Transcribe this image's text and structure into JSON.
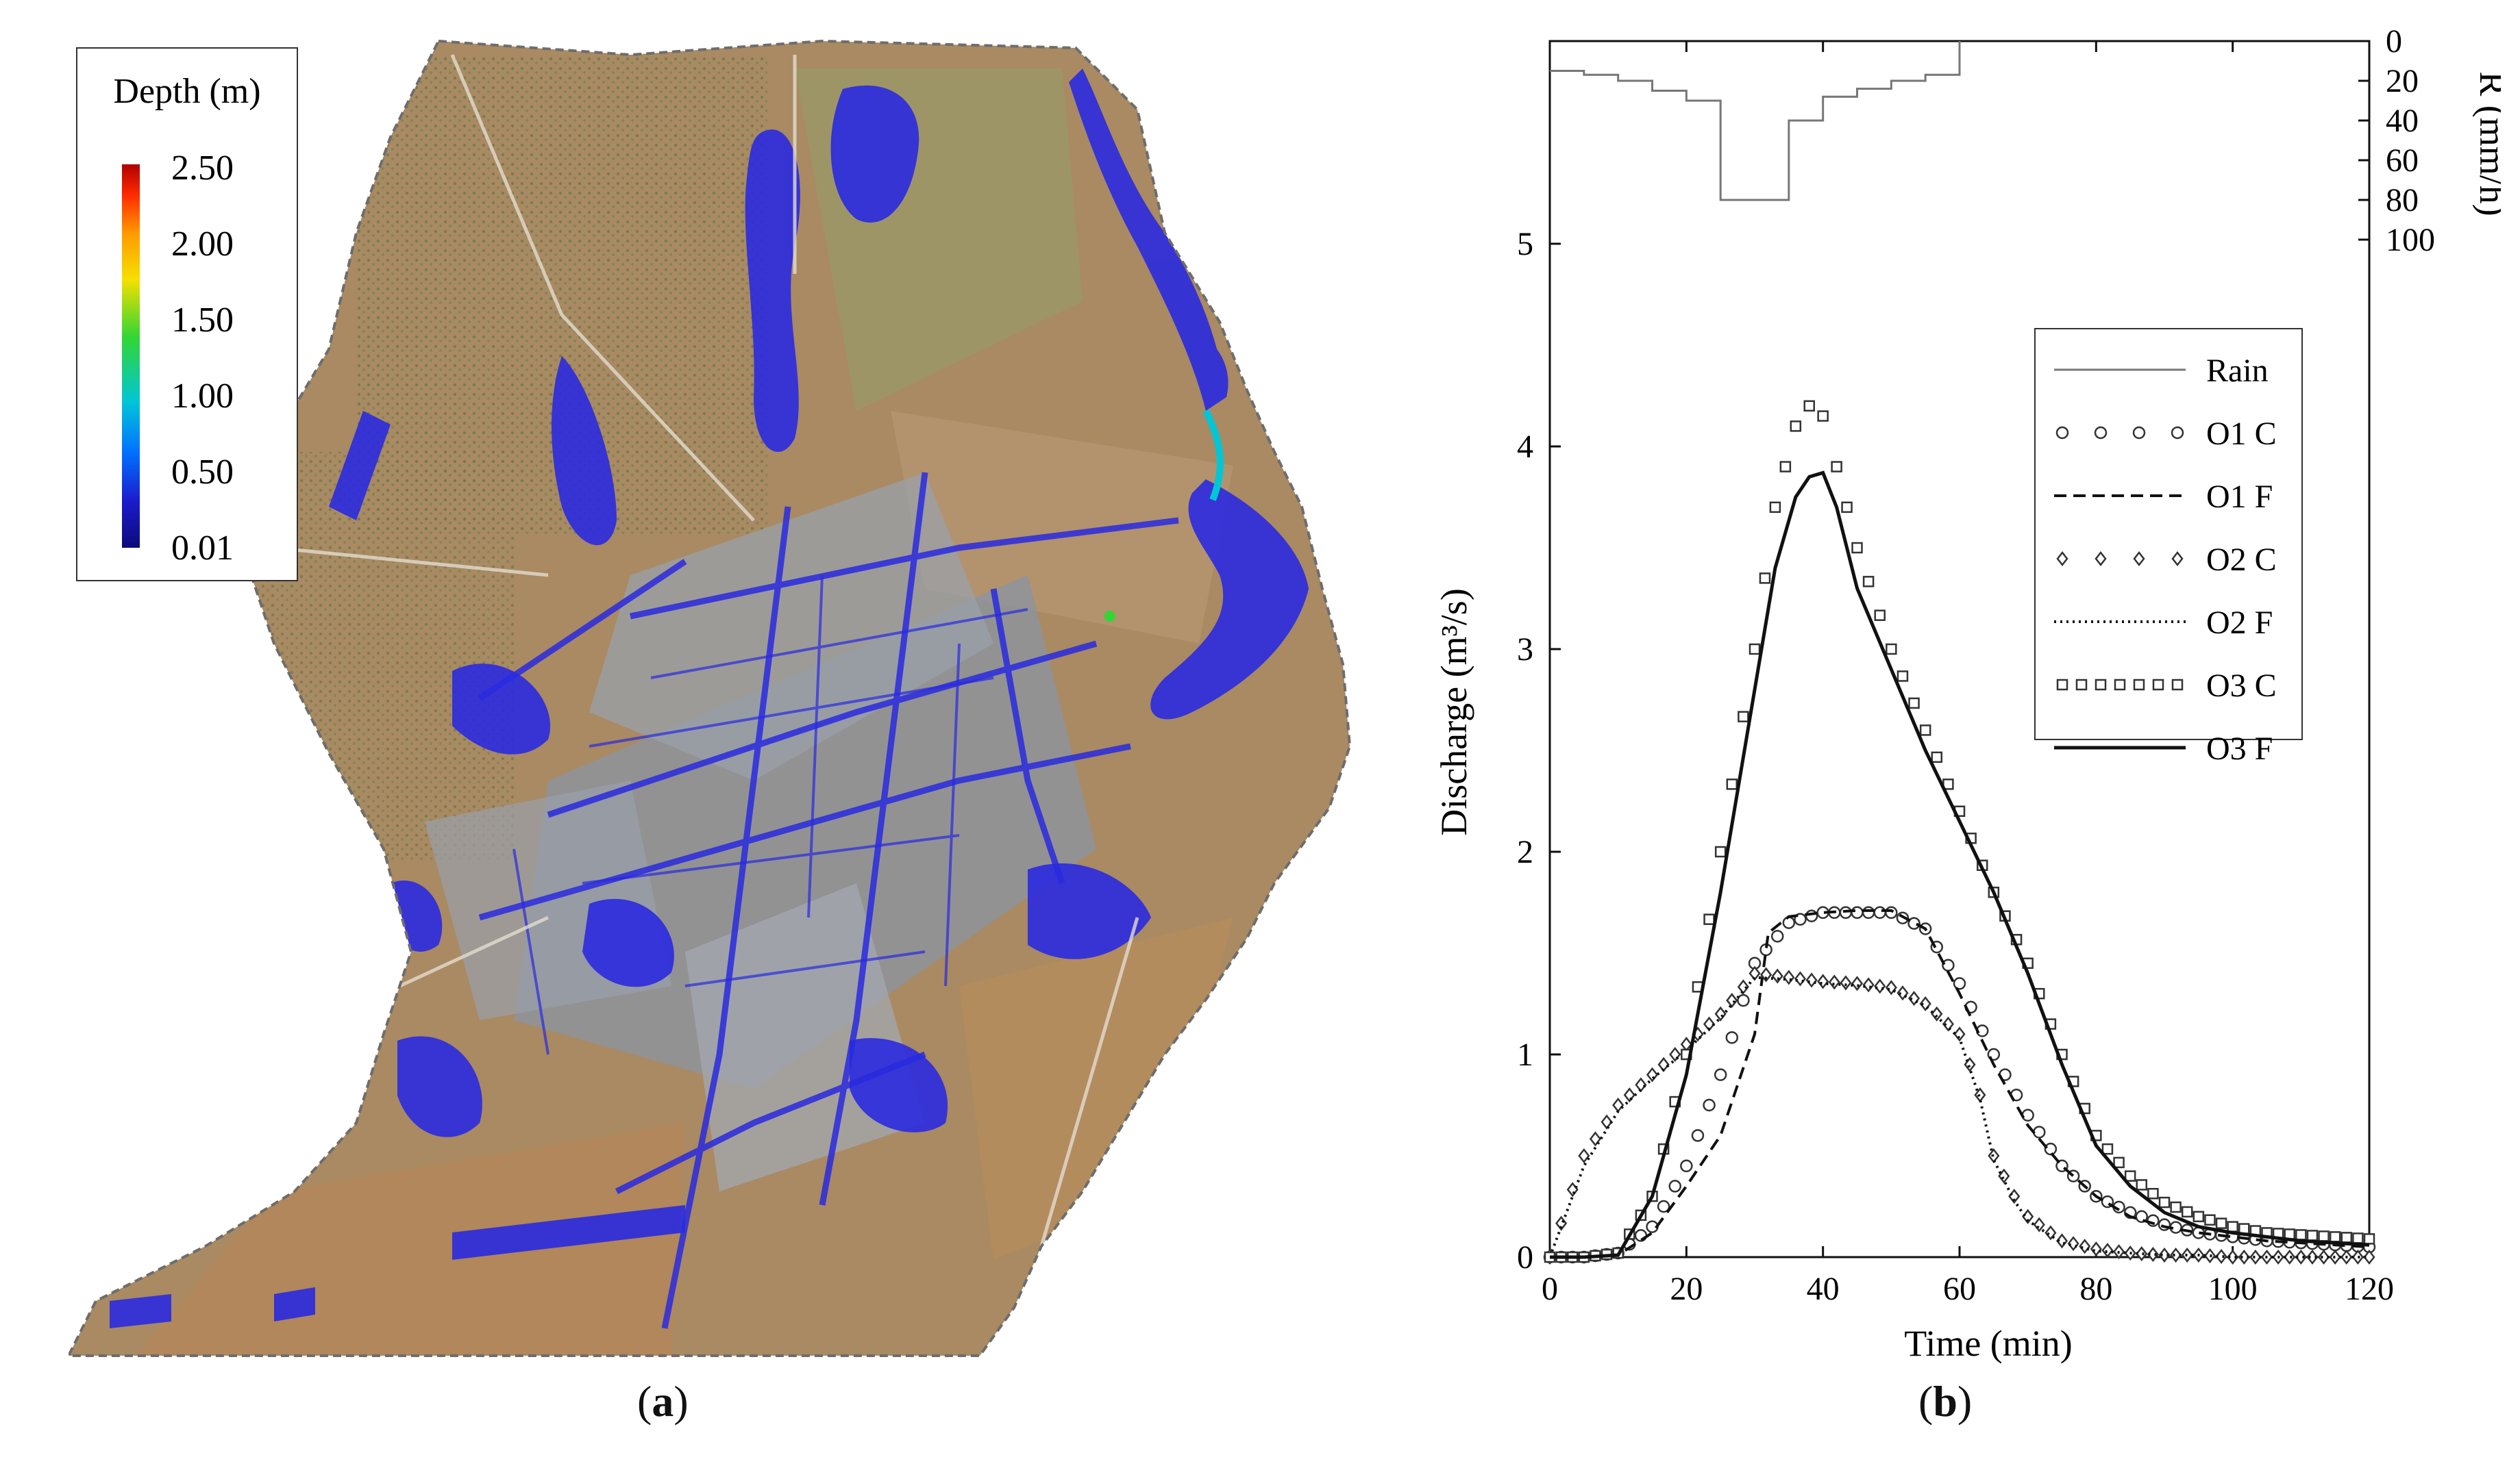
{
  "panel_labels": {
    "a": "a",
    "b": "b"
  },
  "map": {
    "legend": {
      "title": "Depth (m)",
      "ticks": [
        "2.50",
        "2.00",
        "1.50",
        "1.00",
        "0.50",
        "0.01"
      ],
      "colormap": [
        "#b00000",
        "#ff2a00",
        "#ff9a00",
        "#f5e000",
        "#33d633",
        "#00c6d6",
        "#0072ff",
        "#1b1bcc",
        "#0b0b7a"
      ]
    },
    "colors": {
      "terrain": "#a98a62",
      "terrain_dark": "#8a6a45",
      "fields_green": "#8f9a64",
      "water": "#2a2ae0",
      "urban": "#8c93a0"
    }
  },
  "chart_data": [
    {
      "type": "line",
      "role": "discharge",
      "xlabel": "Time (min)",
      "ylabel": "Discharge (m³/s)",
      "xlim": [
        0,
        120
      ],
      "ylim": [
        0,
        6
      ],
      "xticks": [
        0,
        20,
        40,
        60,
        80,
        100,
        120
      ],
      "yticks": [
        0,
        1,
        2,
        3,
        4,
        5
      ],
      "legend_position": "upper-right",
      "series": [
        {
          "name": "O1 C",
          "style": "circles",
          "x": [
            0,
            5,
            10,
            15,
            20,
            25,
            30,
            35,
            40,
            45,
            50,
            55,
            60,
            65,
            70,
            75,
            80,
            85,
            90,
            95,
            100,
            105,
            110,
            115,
            120
          ],
          "y": [
            0,
            0,
            0.02,
            0.15,
            0.45,
            0.9,
            1.45,
            1.65,
            1.7,
            1.7,
            1.7,
            1.62,
            1.35,
            1.0,
            0.7,
            0.45,
            0.3,
            0.22,
            0.16,
            0.12,
            0.1,
            0.08,
            0.07,
            0.06,
            0.05
          ]
        },
        {
          "name": "O1 F",
          "style": "dashed",
          "x": [
            0,
            5,
            10,
            15,
            20,
            25,
            30,
            32,
            35,
            40,
            45,
            50,
            55,
            60,
            65,
            70,
            75,
            80,
            85,
            90,
            95,
            100,
            105,
            110,
            115,
            120
          ],
          "y": [
            0,
            0,
            0.01,
            0.12,
            0.35,
            0.6,
            1.1,
            1.6,
            1.68,
            1.7,
            1.71,
            1.71,
            1.62,
            1.3,
            0.95,
            0.65,
            0.45,
            0.3,
            0.2,
            0.15,
            0.12,
            0.1,
            0.08,
            0.07,
            0.06,
            0.05
          ]
        },
        {
          "name": "O2 C",
          "style": "diamonds",
          "x": [
            0,
            5,
            10,
            15,
            20,
            25,
            30,
            35,
            40,
            45,
            50,
            55,
            60,
            63,
            65,
            68,
            70,
            75,
            80,
            85,
            90,
            95,
            100,
            105,
            110,
            115,
            120
          ],
          "y": [
            0,
            0.5,
            0.75,
            0.9,
            1.05,
            1.2,
            1.4,
            1.38,
            1.36,
            1.35,
            1.33,
            1.25,
            1.1,
            0.8,
            0.5,
            0.3,
            0.2,
            0.08,
            0.04,
            0.02,
            0.01,
            0.01,
            0,
            0,
            0,
            0,
            0
          ]
        },
        {
          "name": "O2 F",
          "style": "dotted",
          "x": [
            0,
            5,
            10,
            15,
            20,
            25,
            30,
            35,
            40,
            45,
            50,
            55,
            60,
            63,
            65,
            68,
            70,
            75,
            80,
            85,
            90,
            95,
            100,
            105,
            110,
            115,
            120
          ],
          "y": [
            0,
            0.45,
            0.72,
            0.88,
            1.02,
            1.18,
            1.38,
            1.37,
            1.35,
            1.34,
            1.32,
            1.24,
            1.08,
            0.78,
            0.48,
            0.28,
            0.18,
            0.07,
            0.03,
            0.02,
            0.01,
            0.01,
            0,
            0,
            0,
            0,
            0
          ]
        },
        {
          "name": "O3 C",
          "style": "squares",
          "x": [
            0,
            5,
            10,
            15,
            20,
            25,
            30,
            33,
            36,
            38,
            40,
            42,
            45,
            50,
            55,
            60,
            65,
            70,
            75,
            80,
            85,
            90,
            95,
            100,
            105,
            110,
            115,
            120
          ],
          "y": [
            0,
            0,
            0.02,
            0.3,
            1.0,
            2.0,
            3.0,
            3.7,
            4.1,
            4.2,
            4.15,
            3.9,
            3.5,
            3.0,
            2.6,
            2.2,
            1.8,
            1.45,
            1.0,
            0.6,
            0.4,
            0.27,
            0.2,
            0.15,
            0.12,
            0.11,
            0.1,
            0.09
          ]
        },
        {
          "name": "O3 F",
          "style": "solid",
          "x": [
            0,
            5,
            10,
            15,
            20,
            25,
            30,
            33,
            36,
            38,
            40,
            42,
            45,
            50,
            55,
            60,
            65,
            70,
            75,
            80,
            85,
            90,
            95,
            100,
            105,
            110,
            115,
            120
          ],
          "y": [
            0,
            0,
            0.01,
            0.3,
            0.9,
            1.8,
            2.8,
            3.4,
            3.75,
            3.85,
            3.87,
            3.7,
            3.3,
            2.9,
            2.5,
            2.15,
            1.8,
            1.4,
            0.95,
            0.55,
            0.35,
            0.22,
            0.15,
            0.12,
            0.1,
            0.08,
            0.07,
            0.06
          ]
        }
      ]
    },
    {
      "type": "line",
      "role": "rain",
      "series_name": "Rain",
      "ylabel": "R (mm/h)",
      "ylim": [
        0,
        100
      ],
      "yticks": [
        0,
        20,
        40,
        60,
        80,
        100
      ],
      "inverted": true,
      "steps": [
        {
          "t0": 0,
          "t1": 5,
          "r": 15
        },
        {
          "t0": 5,
          "t1": 10,
          "r": 17
        },
        {
          "t0": 10,
          "t1": 15,
          "r": 20
        },
        {
          "t0": 15,
          "t1": 20,
          "r": 25
        },
        {
          "t0": 20,
          "t1": 25,
          "r": 30
        },
        {
          "t0": 25,
          "t1": 35,
          "r": 80
        },
        {
          "t0": 35,
          "t1": 40,
          "r": 40
        },
        {
          "t0": 40,
          "t1": 45,
          "r": 28
        },
        {
          "t0": 45,
          "t1": 50,
          "r": 24
        },
        {
          "t0": 50,
          "t1": 55,
          "r": 20
        },
        {
          "t0": 55,
          "t1": 60,
          "r": 17
        }
      ]
    }
  ]
}
